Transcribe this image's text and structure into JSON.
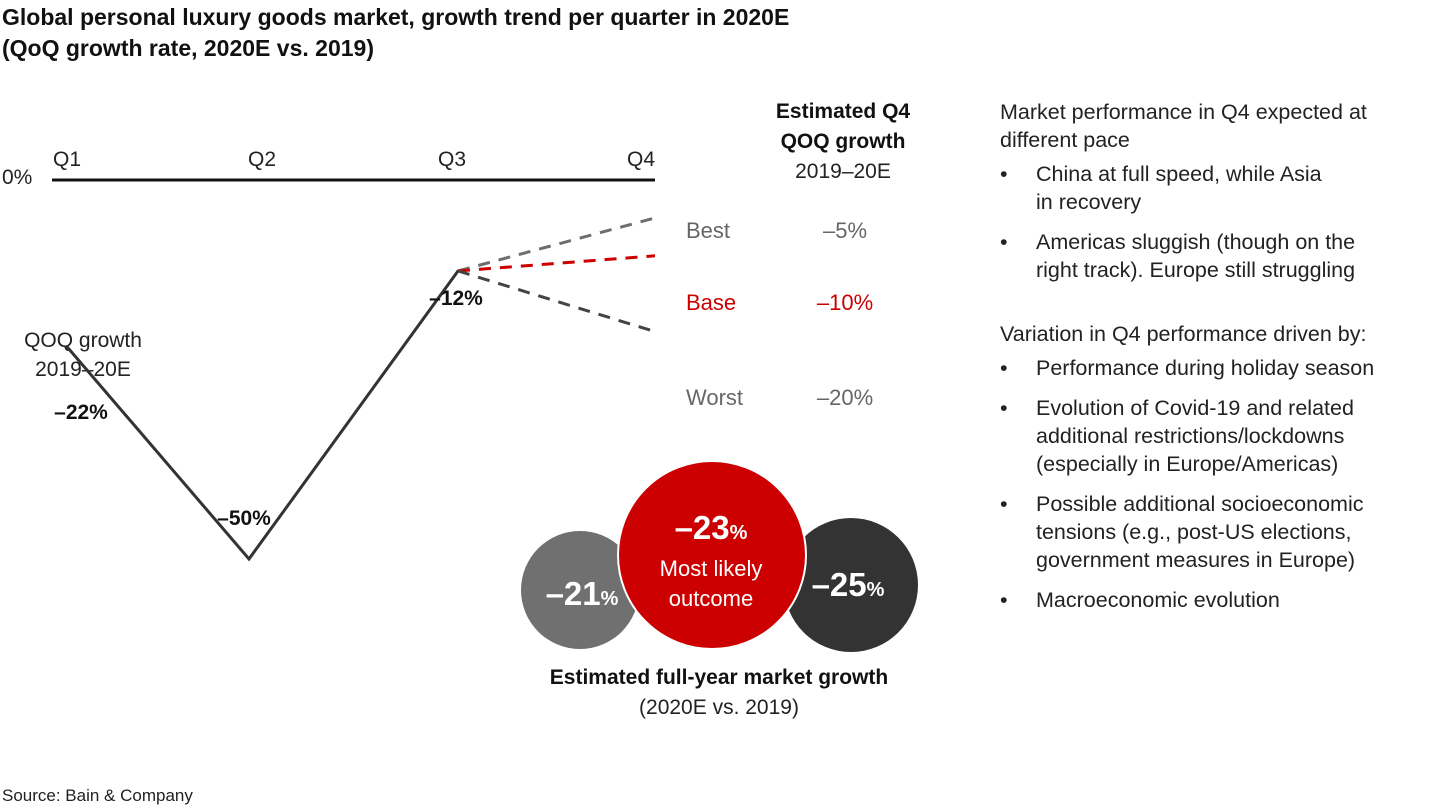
{
  "title_line1": "Global personal luxury goods market, growth trend per quarter in 2020E",
  "title_line2": "(QoQ growth rate, 2020E vs. 2019)",
  "colors": {
    "main_line": "#333333",
    "best": "#6e6e6e",
    "base": "#cc0000",
    "worst": "#444444",
    "bubble_left": "#707070",
    "bubble_center": "#cc0000",
    "bubble_right": "#333333",
    "scenario_gray_text": "#666666"
  },
  "chart_data": {
    "type": "line",
    "zero_label": "0%",
    "quarters": [
      "Q1",
      "Q2",
      "Q3",
      "Q4"
    ],
    "y_axis_label_line1": "QOQ growth",
    "y_axis_label_line2": "2019–20E",
    "series": [
      {
        "values": [
          -22,
          -50,
          -12
        ]
      }
    ],
    "point_labels": [
      "–22%",
      "–50%",
      "–12%"
    ],
    "scenarios_header_line1": "Estimated Q4",
    "scenarios_header_line2": "QOQ growth",
    "scenarios_header_line3": "2019–20E",
    "scenarios": [
      {
        "name": "Best",
        "q4": -5,
        "label": "–5%",
        "style": "dashed"
      },
      {
        "name": "Base",
        "q4": -10,
        "label": "–10%",
        "style": "dashed"
      },
      {
        "name": "Worst",
        "q4": -20,
        "label": "–20%",
        "style": "dashed"
      }
    ],
    "ylim": [
      -55,
      0
    ],
    "full_year": {
      "title": "Estimated full-year market growth",
      "subtitle": "(2020E vs. 2019)",
      "outcomes": [
        {
          "value": -21,
          "number": "–21",
          "pct": "%"
        },
        {
          "value": -23,
          "number": "–23",
          "pct": "%",
          "caption_line1": "Most likely",
          "caption_line2": "outcome"
        },
        {
          "value": -25,
          "number": "–25",
          "pct": "%"
        }
      ]
    }
  },
  "right_panel": {
    "section1_lead_line1": "Market performance in Q4 expected at",
    "section1_lead_line2": "different pace",
    "section1_bullets": [
      {
        "line1": "China at full speed, while Asia",
        "line2": "in recovery"
      },
      {
        "line1": "Americas sluggish (though on the",
        "line2": "right track). Europe still struggling"
      }
    ],
    "section2_lead": "Variation in Q4 performance driven by:",
    "section2_bullets": [
      {
        "line1": "Performance during holiday season"
      },
      {
        "line1": "Evolution of Covid-19 and related",
        "line2": "additional restrictions/lockdowns",
        "line3": "(especially in Europe/Americas)"
      },
      {
        "line1": "Possible additional socioeconomic",
        "line2": "tensions (e.g., post-US elections,",
        "line3": "government measures in Europe)"
      },
      {
        "line1": "Macroeconomic evolution"
      }
    ],
    "bullet_char": "•"
  },
  "source": "Source: Bain & Company"
}
